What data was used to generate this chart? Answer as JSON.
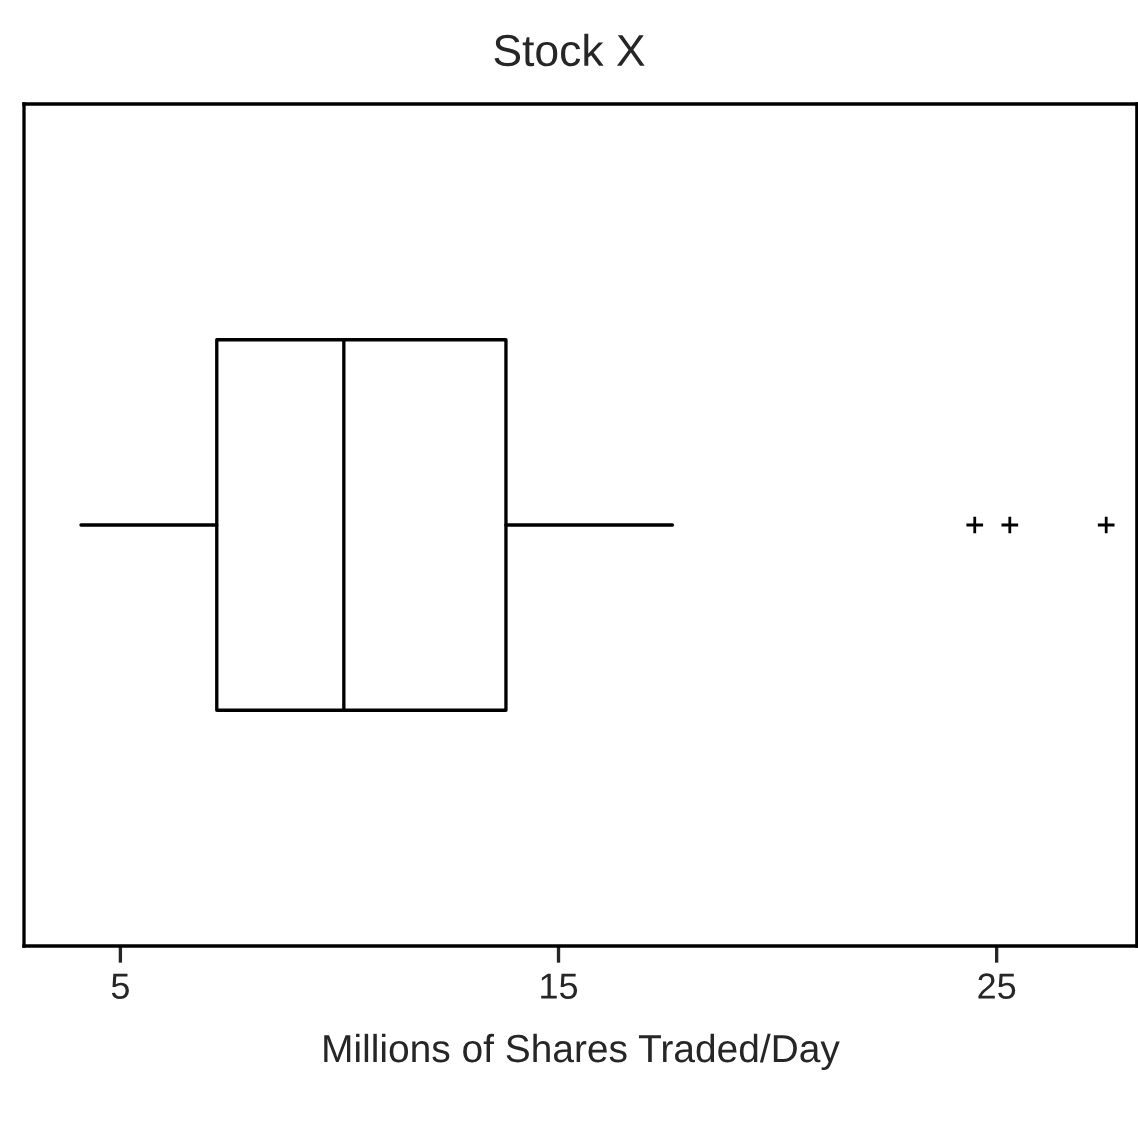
{
  "chart_data": {
    "type": "box",
    "title": "Stock X",
    "xlabel": "Millions of Shares Traded/Day",
    "orientation": "horizontal",
    "categories": [
      null
    ],
    "color": "#000000",
    "marker": "cross",
    "boxes": [
      {
        "low": 4.1,
        "q1": 7.2,
        "median": 10.1,
        "q3": 13.8,
        "high": 17.6,
        "outliers": [
          24.5,
          25.3,
          27.5
        ]
      }
    ],
    "xlim": [
      2.8,
      28.2
    ],
    "xticks": [
      5,
      15,
      25
    ],
    "grid": false
  }
}
